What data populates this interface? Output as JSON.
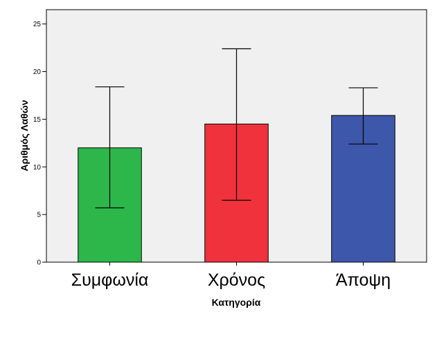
{
  "chart_data": {
    "type": "bar",
    "title": "",
    "xlabel": "Κατηγορία",
    "ylabel": "Αριθμός Λαθών",
    "ylim": [
      0,
      26.5
    ],
    "yticks": [
      0,
      5,
      10,
      15,
      20,
      25
    ],
    "ytick_labels": [
      "0",
      "5",
      "10",
      "15",
      "20",
      "25"
    ],
    "categories": [
      "Συμφωνία",
      "Χρόνος",
      "Άποψη"
    ],
    "values": [
      12.0,
      14.5,
      15.4
    ],
    "error_low": [
      5.7,
      6.5,
      12.4
    ],
    "error_high": [
      18.4,
      22.4,
      18.3
    ],
    "colors": [
      "#2db74b",
      "#f0323c",
      "#3d57aa"
    ],
    "plot_background": "#f0f0f0",
    "grid": false,
    "legend": "none"
  }
}
